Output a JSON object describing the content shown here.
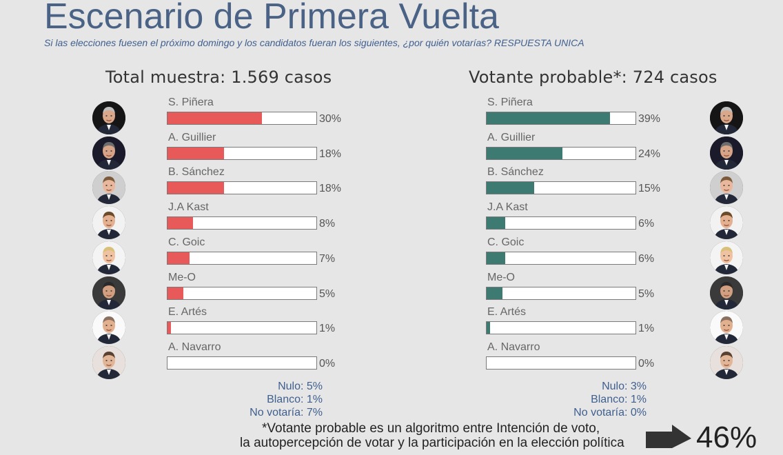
{
  "header": {
    "title": "Escenario de Primera Vuelta",
    "subtitle": "Si las elecciones fuesen el próximo domingo y los candidatos fueran los siguientes, ¿por quién votarías? RESPUESTA UNICA"
  },
  "colors": {
    "total_bar": "#e85a5a",
    "probable_bar": "#3d7a72",
    "title": "#4a6285",
    "extras_text": "#3f5f8f"
  },
  "chart_data": [
    {
      "type": "bar",
      "title": "Total muestra: 1.569 casos",
      "categories": [
        "S. Piñera",
        "A. Guillier",
        "B. Sánchez",
        "J.A Kast",
        "C. Goic",
        "Me-O",
        "E. Artés",
        "A. Navarro"
      ],
      "values": [
        30,
        18,
        18,
        8,
        7,
        5,
        1,
        0
      ],
      "value_labels": [
        "30%",
        "18%",
        "18%",
        "8%",
        "7%",
        "5%",
        "1%",
        "0%"
      ],
      "xlim": [
        0,
        100
      ],
      "orientation": "horizontal",
      "extras": [
        "Nulo: 5%",
        "Blanco: 1%",
        "No votaría: 7%"
      ]
    },
    {
      "type": "bar",
      "title": "Votante probable*: 724 casos",
      "categories": [
        "S. Piñera",
        "A. Guillier",
        "B. Sánchez",
        "J.A Kast",
        "C. Goic",
        "Me-O",
        "E. Artés",
        "A. Navarro"
      ],
      "values": [
        39,
        24,
        15,
        6,
        6,
        5,
        1,
        0
      ],
      "value_labels": [
        "39%",
        "24%",
        "15%",
        "6%",
        "6%",
        "5%",
        "1%",
        "0%"
      ],
      "xlim": [
        0,
        100
      ],
      "orientation": "horizontal",
      "extras": [
        "Nulo: 3%",
        "Blanco: 1%",
        "No votaría: 0%"
      ]
    }
  ],
  "footer": {
    "note_line1": "*Votante probable es un algoritmo entre Intención de voto,",
    "note_line2": "la autopercepción de votar y la participación en la elección política",
    "big_value": "46%"
  },
  "avatars": [
    {
      "icon": "person-photo-icon",
      "bg": "#151515",
      "skin": "#d9a88a",
      "hair": "#bfbfbf"
    },
    {
      "icon": "person-photo-icon",
      "bg": "#1a1a2a",
      "skin": "#d8a487",
      "hair": "#6d6d6d"
    },
    {
      "icon": "person-photo-icon",
      "bg": "#cfcfcf",
      "skin": "#e9b79b",
      "hair": "#7a5a3a"
    },
    {
      "icon": "person-photo-icon",
      "bg": "#f2f2f2",
      "skin": "#e4b090",
      "hair": "#6b4a2a"
    },
    {
      "icon": "person-photo-icon",
      "bg": "#f4f4f4",
      "skin": "#efc2a2",
      "hair": "#d9c07a"
    },
    {
      "icon": "person-photo-icon",
      "bg": "#3a3a3a",
      "skin": "#d2a080",
      "hair": "#2a2a2a"
    },
    {
      "icon": "person-photo-icon",
      "bg": "#fafafa",
      "skin": "#e2b08e",
      "hair": "#8a7060"
    },
    {
      "icon": "person-photo-icon",
      "bg": "#e8e0dc",
      "skin": "#e2b597",
      "hair": "#5a4030"
    }
  ]
}
